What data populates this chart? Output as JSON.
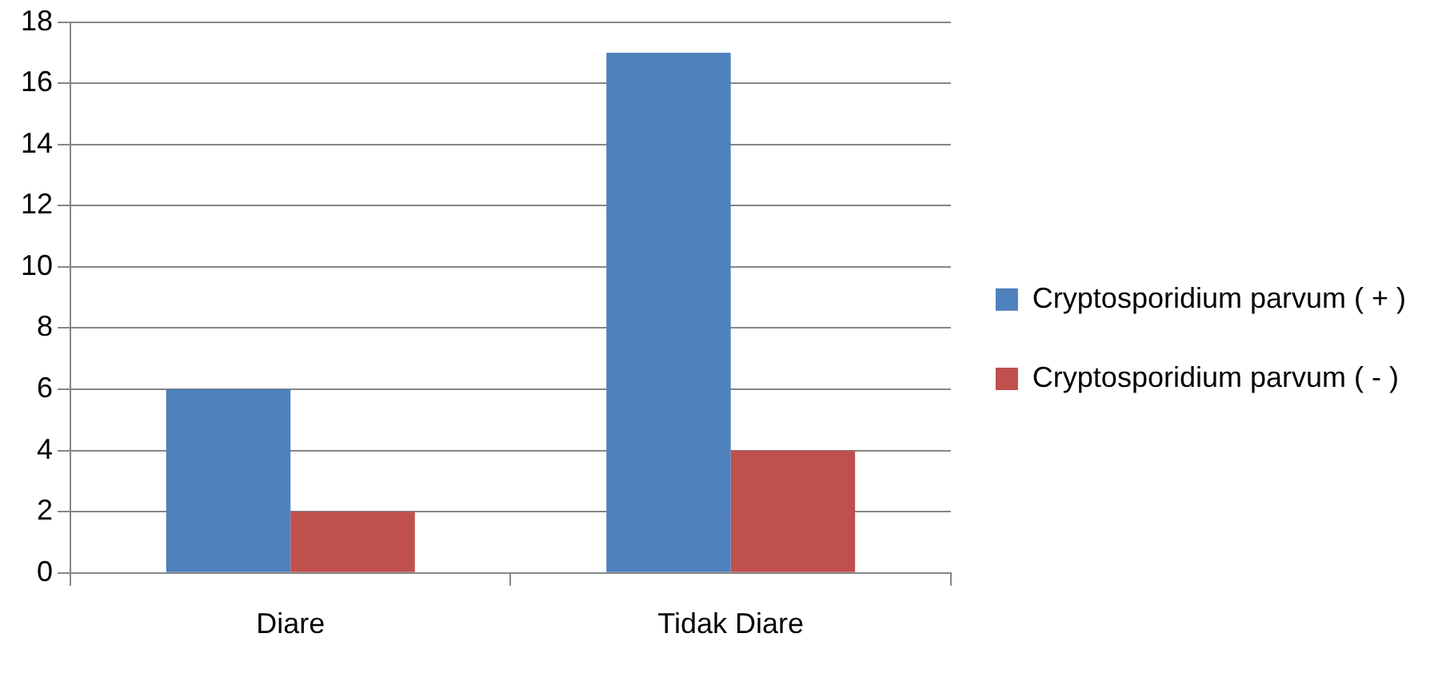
{
  "chart_data": {
    "type": "bar",
    "categories": [
      "Diare",
      "Tidak Diare"
    ],
    "series": [
      {
        "name": "Cryptosporidium parvum ( + )",
        "color": "#4f81bd",
        "values": [
          6,
          17
        ]
      },
      {
        "name": "Cryptosporidium parvum ( - )",
        "color": "#c0504d",
        "values": [
          2,
          4
        ]
      }
    ],
    "ylim": [
      0,
      18
    ],
    "yticks": [
      0,
      2,
      4,
      6,
      8,
      10,
      12,
      14,
      16,
      18
    ],
    "grid": "y",
    "legend": "right"
  }
}
